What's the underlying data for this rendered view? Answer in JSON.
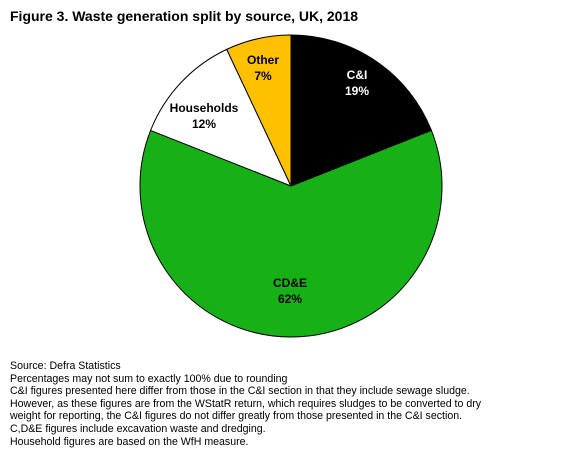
{
  "chart_data": {
    "type": "pie",
    "title": "Figure 3. Waste generation split by source, UK, 2018",
    "slices": [
      {
        "label": "C&I",
        "percent_label": "19%",
        "value": 19,
        "color": "#000000",
        "label_color": "#ffffff"
      },
      {
        "label": "CD&E",
        "percent_label": "62%",
        "value": 62,
        "color": "#17b117",
        "label_color": "#000000"
      },
      {
        "label": "Households",
        "percent_label": "12%",
        "value": 12,
        "color": "#ffffff",
        "label_color": "#000000"
      },
      {
        "label": "Other",
        "percent_label": "7%",
        "value": 7,
        "color": "#ffc000",
        "label_color": "#000000"
      }
    ]
  },
  "notes": [
    "Source: Defra Statistics",
    "Percentages may not sum to exactly 100% due to rounding",
    "C&I figures presented here differ from those in the C&I section in that they include sewage sludge.",
    "However, as these figures are from the WStatR return, which requires sludges to be converted to dry",
    "weight for reporting, the C&I figures do not differ greatly from those presented in the C&I section.",
    "C,D&E figures include excavation waste and dredging.",
    "Household figures are based on the WfH measure."
  ]
}
